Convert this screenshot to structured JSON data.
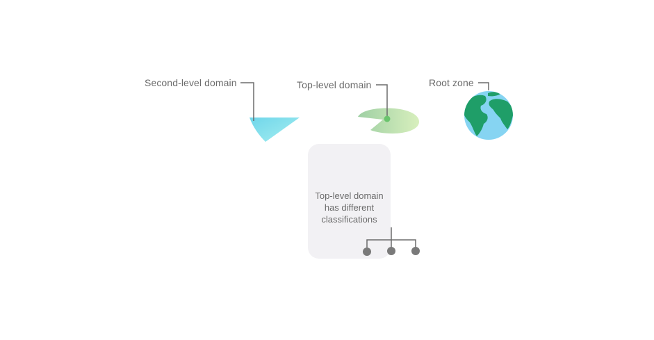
{
  "labels": {
    "second_level": "Second-level domain",
    "top_level": "Top-level domain",
    "root_zone": "Root zone"
  },
  "card": {
    "line1": "Top-level domain",
    "line2": "has different",
    "line3": "classifications"
  },
  "colors": {
    "second_level_shape": "#7fdcec",
    "top_level_shape": "#bfe3a9",
    "globe_ocean": "#86d4f2",
    "globe_land": "#1f9e68",
    "leader_line": "#6b6b6b",
    "node": "#7a7a7a"
  },
  "icons": [
    "cone-slice-icon",
    "leaf-disc-icon",
    "globe-icon"
  ]
}
